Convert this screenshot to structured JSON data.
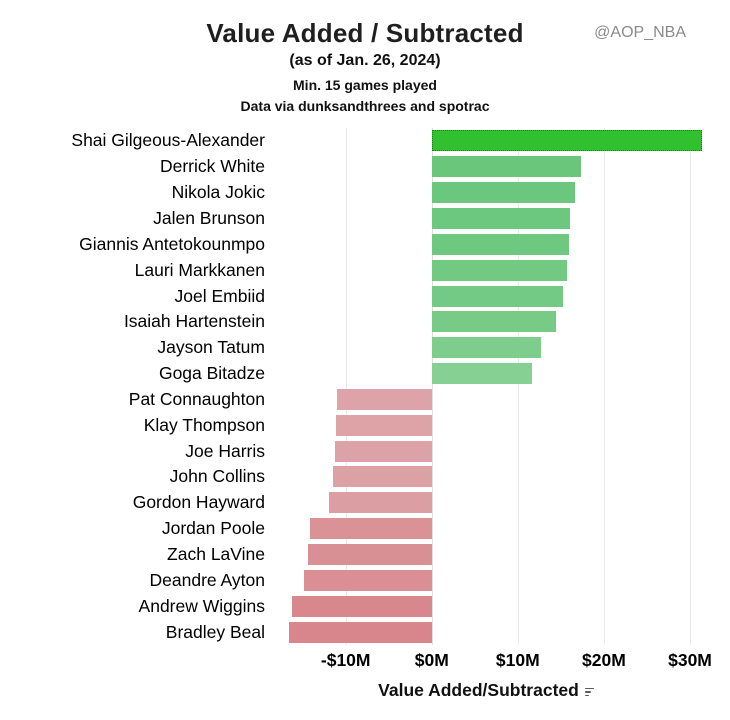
{
  "header": {
    "title": "Value Added / Subtracted",
    "date_note": "(as of Jan. 26, 2024)",
    "min_games_note": "Min. 15 games played",
    "source_note": "Data via dunksandthrees and spotrac",
    "handle": "@AOP_NBA"
  },
  "chart_data": {
    "type": "bar",
    "orientation": "horizontal",
    "title": "Value Added / Subtracted",
    "xlabel": "Value Added/Subtracted",
    "unit": "USD millions",
    "xlim": [
      -18.8,
      31.4
    ],
    "grid": "vertical-light",
    "legend": "none",
    "x_ticks": [
      {
        "label": "-$10M",
        "value": -10
      },
      {
        "label": "$0M",
        "value": 0
      },
      {
        "label": "$10M",
        "value": 10
      },
      {
        "label": "$20M",
        "value": 20
      },
      {
        "label": "$30M",
        "value": 30
      }
    ],
    "gridlines_at": [
      -10,
      10,
      20,
      30
    ],
    "categories": [
      "Shai Gilgeous-Alexander",
      "Derrick White",
      "Nikola Jokic",
      "Jalen Brunson",
      "Giannis Antetokounmpo",
      "Lauri Markkanen",
      "Joel Embiid",
      "Isaiah Hartenstein",
      "Jayson Tatum",
      "Goga Bitadze",
      "Pat Connaughton",
      "Klay Thompson",
      "Joe Harris",
      "John Collins",
      "Gordon Hayward",
      "Jordan Poole",
      "Zach LaVine",
      "Deandre Ayton",
      "Andrew Wiggins",
      "Bradley Beal"
    ],
    "values": [
      31.4,
      17.3,
      16.6,
      16.1,
      16.0,
      15.7,
      15.3,
      14.4,
      12.7,
      11.6,
      -11.0,
      -11.1,
      -11.2,
      -11.5,
      -11.9,
      -14.1,
      -14.4,
      -14.8,
      -16.3,
      -16.6
    ],
    "bar_colors": [
      "#30c030",
      "#69c67b",
      "#6bc77d",
      "#6dc87f",
      "#6ec880",
      "#71c982",
      "#73ca84",
      "#77cb87",
      "#7ecd8d",
      "#87d094",
      "#dda3a8",
      "#dda3a7",
      "#dda2a7",
      "#dca1a5",
      "#db9ea2",
      "#da9297",
      "#d99095",
      "#d98f94",
      "#d8878c",
      "#d8868b"
    ],
    "highlighted_bar": "Shai Gilgeous-Alexander",
    "colors": {
      "positive_max": "#30c030",
      "positive_soft": "#6cc77e",
      "negative_soft": "#dda3a8",
      "negative_max": "#d8868b",
      "gridline": "#ebebeb",
      "highlight_border": "#1d7f1d",
      "handle_text": "#8a8a8a"
    },
    "sort_icon": "descending-sort"
  }
}
